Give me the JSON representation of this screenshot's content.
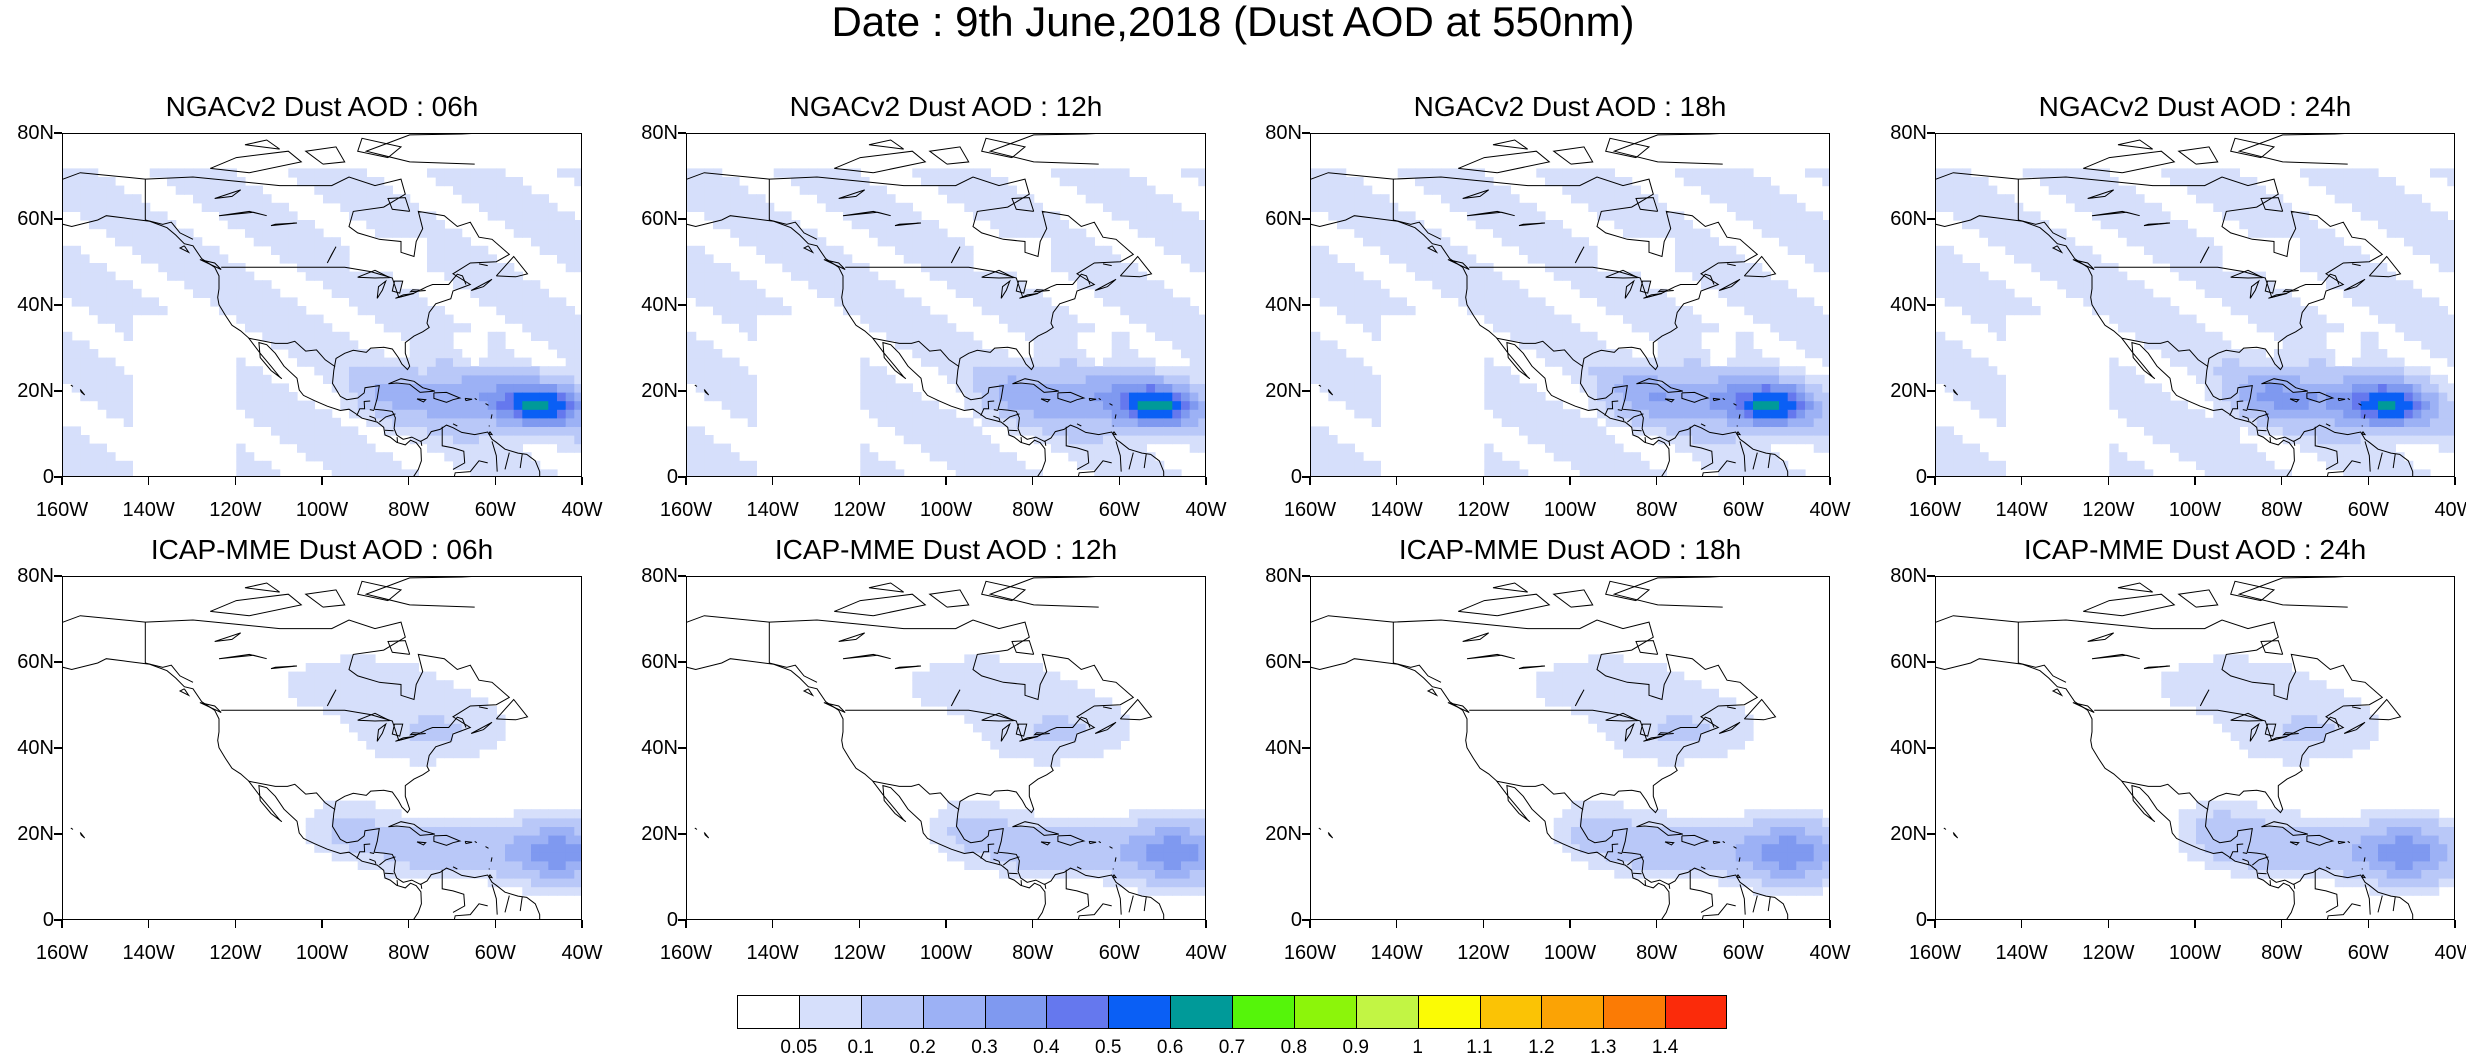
{
  "title": "Date : 9th June,2018 (Dust AOD at 550nm)",
  "map": {
    "lon_range": [
      -160,
      -40
    ],
    "lat_range": [
      0,
      80
    ],
    "xticks": [
      "160W",
      "140W",
      "120W",
      "100W",
      "80W",
      "60W",
      "40W"
    ],
    "yticks": [
      "80N",
      "60N",
      "40N",
      "20N",
      "0"
    ]
  },
  "panels": [
    {
      "title": "NGACv2 Dust AOD : 06h",
      "model": "NGACv2",
      "hour": "06h"
    },
    {
      "title": "NGACv2 Dust AOD : 12h",
      "model": "NGACv2",
      "hour": "12h"
    },
    {
      "title": "NGACv2 Dust AOD : 18h",
      "model": "NGACv2",
      "hour": "18h"
    },
    {
      "title": "NGACv2 Dust AOD : 24h",
      "model": "NGACv2",
      "hour": "24h"
    },
    {
      "title": "ICAP-MME Dust AOD : 06h",
      "model": "ICAP-MME",
      "hour": "06h"
    },
    {
      "title": "ICAP-MME Dust AOD : 12h",
      "model": "ICAP-MME",
      "hour": "12h"
    },
    {
      "title": "ICAP-MME Dust AOD : 18h",
      "model": "ICAP-MME",
      "hour": "18h"
    },
    {
      "title": "ICAP-MME Dust AOD : 24h",
      "model": "ICAP-MME",
      "hour": "24h"
    }
  ],
  "colorbar": {
    "colors": [
      "#ffffff",
      "#d6dffb",
      "#b9c8f8",
      "#9cb1f5",
      "#7f99f0",
      "#6578ee",
      "#0a5ff5",
      "#009a99",
      "#55f50a",
      "#8cf50a",
      "#c2f544",
      "#fbfb05",
      "#fbc305",
      "#fba305",
      "#fb7b05",
      "#fb2b0a"
    ],
    "labels": [
      "0.05",
      "0.1",
      "0.2",
      "0.3",
      "0.4",
      "0.5",
      "0.6",
      "0.7",
      "0.8",
      "0.9",
      "1",
      "1.1",
      "1.2",
      "1.3",
      "1.4"
    ]
  }
}
